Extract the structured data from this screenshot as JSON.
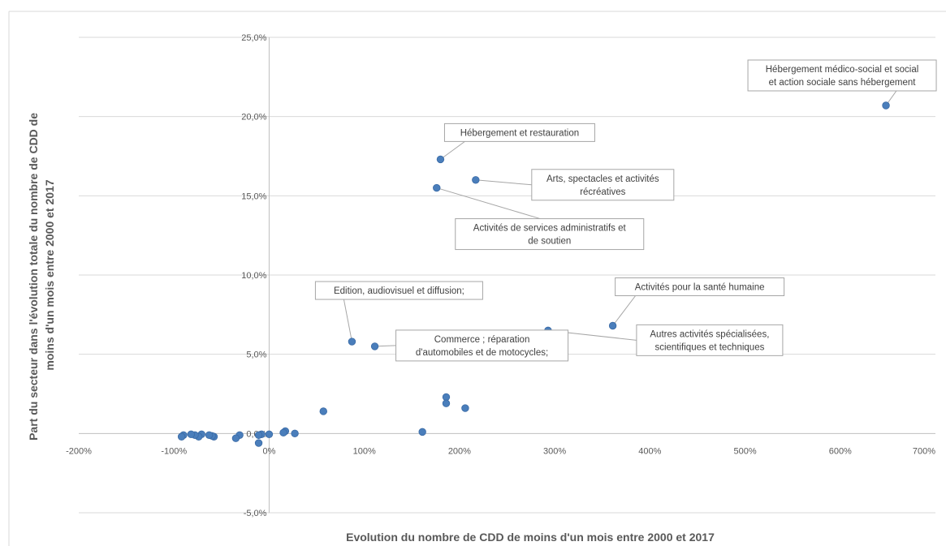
{
  "chart_data": {
    "type": "scatter",
    "title": "",
    "xlabel": "Evolution du nombre de CDD de moins d'un mois entre 2000 et 2017",
    "ylabel": "Part du secteur dans l'évolution totale du nombre de CDD de moins d'un mois entre 2000 et 2017",
    "xlim": [
      -2.0,
      7.0
    ],
    "ylim": [
      -0.05,
      0.25
    ],
    "x_ticks": [
      "-200%",
      "-100%",
      "0%",
      "100%",
      "200%",
      "300%",
      "400%",
      "500%",
      "600%",
      "700%"
    ],
    "y_ticks": [
      "-5,0%",
      "0,0%",
      "5,0%",
      "10,0%",
      "15,0%",
      "20,0%",
      "25,0%"
    ],
    "grid": "horizontal",
    "points": [
      {
        "x": 6.48,
        "y": 0.207,
        "label": "Hébergement médico-social et social et action sociale sans hébergement"
      },
      {
        "x": 1.8,
        "y": 0.173,
        "label": "Hébergement et restauration"
      },
      {
        "x": 2.17,
        "y": 0.16,
        "label": "Arts, spectacles et activités récréatives"
      },
      {
        "x": 1.76,
        "y": 0.155,
        "label": "Activités de services administratifs et de soutien"
      },
      {
        "x": 3.61,
        "y": 0.068,
        "label": "Activités pour la santé humaine"
      },
      {
        "x": 2.93,
        "y": 0.065,
        "label": "Autres activités spécialisées, scientifiques et techniques"
      },
      {
        "x": 0.87,
        "y": 0.058,
        "label": "Edition, audiovisuel et diffusion;"
      },
      {
        "x": 1.11,
        "y": 0.055,
        "label": "Commerce ; réparation d'automobiles et de motocycles;"
      },
      {
        "x": 1.86,
        "y": 0.023
      },
      {
        "x": 1.86,
        "y": 0.019
      },
      {
        "x": 2.06,
        "y": 0.016
      },
      {
        "x": 0.57,
        "y": 0.014
      },
      {
        "x": 1.61,
        "y": 0.001
      },
      {
        "x": 0.17,
        "y": 0.0015
      },
      {
        "x": 0.15,
        "y": 0.0005
      },
      {
        "x": 0.27,
        "y": 0.0
      },
      {
        "x": 0.0,
        "y": -0.0005
      },
      {
        "x": -0.08,
        "y": -0.0005
      },
      {
        "x": -0.11,
        "y": -0.001
      },
      {
        "x": -0.11,
        "y": -0.006
      },
      {
        "x": -0.31,
        "y": -0.001
      },
      {
        "x": -0.35,
        "y": -0.003
      },
      {
        "x": -0.58,
        "y": -0.002
      },
      {
        "x": -0.6,
        "y": -0.0015
      },
      {
        "x": -0.63,
        "y": -0.001
      },
      {
        "x": -0.71,
        "y": -0.0005
      },
      {
        "x": -0.74,
        "y": -0.002
      },
      {
        "x": -0.78,
        "y": -0.001
      },
      {
        "x": -0.82,
        "y": -0.0005
      },
      {
        "x": -0.9,
        "y": -0.001
      },
      {
        "x": -0.92,
        "y": -0.002
      }
    ]
  }
}
